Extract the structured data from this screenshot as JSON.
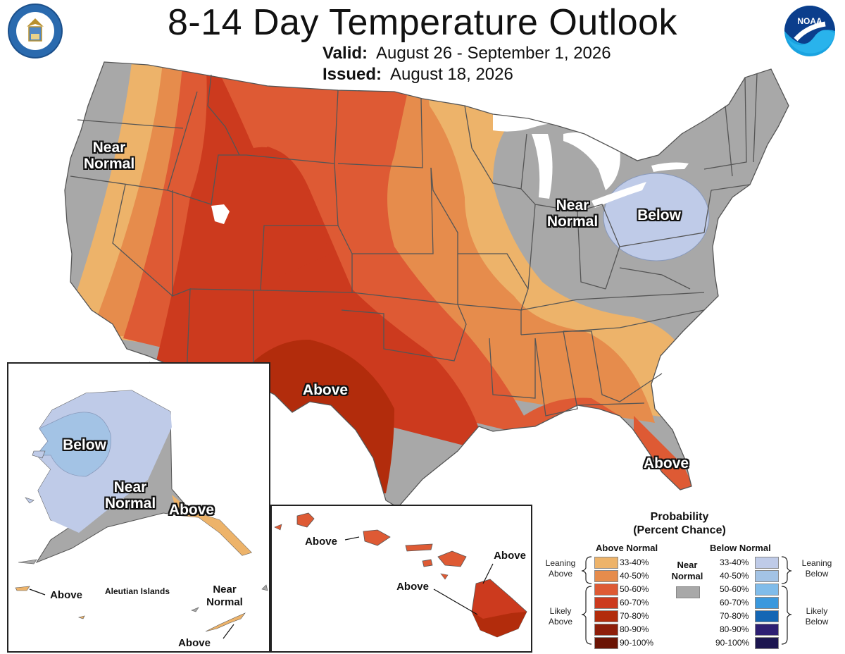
{
  "title": "8-14 Day Temperature Outlook",
  "valid_label": "Valid:",
  "valid_value": "August 26 - September 1, 2026",
  "issued_label": "Issued:",
  "issued_value": "August 18, 2026",
  "logos": {
    "left": "department-of-commerce-seal",
    "right": "noaa-logo"
  },
  "colors": {
    "above_33_40": "#EDB36A",
    "above_40_50": "#E68C4C",
    "above_50_60": "#DE5A34",
    "above_60_70": "#CC3A1E",
    "above_70_80": "#B22C0C",
    "above_80_90": "#8E1E0A",
    "above_90_100": "#6B1404",
    "near_normal": "#A8A8A8",
    "below_33_40": "#BFCBE8",
    "below_40_50": "#A3C3E5",
    "below_50_60": "#80BCEA",
    "below_60_70": "#3A98DD",
    "below_70_80": "#1466B4",
    "below_80_90": "#2D1F73",
    "below_90_100": "#1C1650"
  },
  "conus_labels": {
    "near_normal_west": "Near\nNormal",
    "near_normal_midwest": "Near\nNormal",
    "below_northeast": "Below",
    "above_texas": "Above",
    "above_florida": "Above"
  },
  "alaska_labels": {
    "below": "Below",
    "near_normal": "Near\nNormal",
    "above": "Above",
    "aleutian_title": "Aleutian Islands",
    "aleutian_above_west": "Above",
    "aleutian_near_normal": "Near\nNormal",
    "aleutian_above_east": "Above"
  },
  "hawaii_labels": {
    "above_1": "Above",
    "above_2": "Above",
    "above_3": "Above"
  },
  "legend": {
    "title": "Probability\n(Percent Chance)",
    "above_header": "Above Normal",
    "below_header": "Below Normal",
    "near_header": "Near\nNormal",
    "leaning_above": "Leaning\nAbove",
    "likely_above": "Likely\nAbove",
    "leaning_below": "Leaning\nBelow",
    "likely_below": "Likely\nBelow",
    "ranges": [
      "33-40%",
      "40-50%",
      "50-60%",
      "60-70%",
      "70-80%",
      "80-90%",
      "90-100%"
    ]
  }
}
